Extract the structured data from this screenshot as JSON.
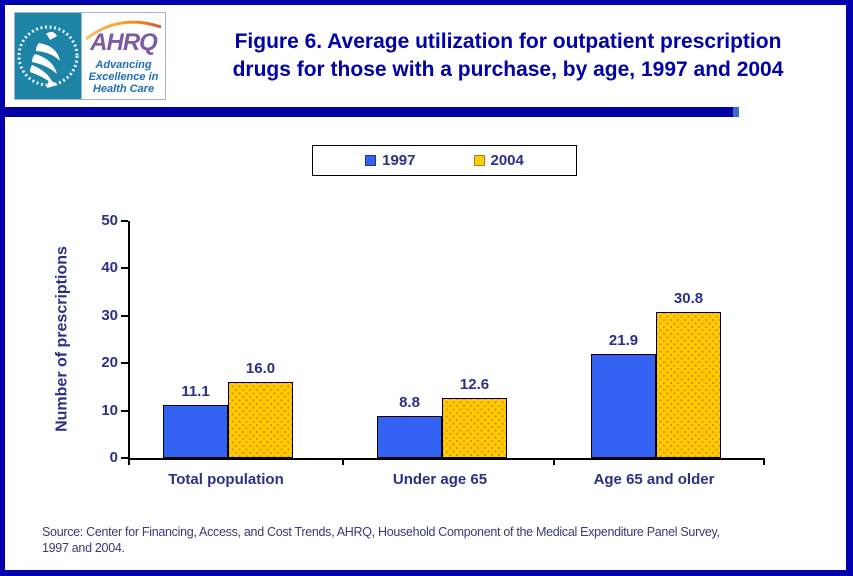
{
  "header": {
    "logo": {
      "hhs_seal": "Department of Health & Human Services USA seal",
      "ahrq_acronym": "AHRQ",
      "ahrq_tagline_lines": [
        "Advancing",
        "Excellence in",
        "Health Care"
      ]
    },
    "title_lines": [
      "Figure 6. Average utilization for outpatient prescription",
      "drugs for those with a purchase, by age, 1997 and 2004"
    ]
  },
  "chart_data": {
    "type": "bar",
    "title": "Figure 6. Average utilization for outpatient prescription drugs for those with a purchase, by age, 1997 and 2004",
    "categories": [
      "Total population",
      "Under age 65",
      "Age 65 and older"
    ],
    "series": [
      {
        "name": "1997",
        "color": "#3361F2",
        "values": [
          11.1,
          8.8,
          21.9
        ]
      },
      {
        "name": "2004",
        "color": "#FFCC00",
        "values": [
          16.0,
          12.6,
          30.8
        ]
      }
    ],
    "xlabel": "",
    "ylabel": "Number of prescriptions",
    "ylim": [
      0,
      50
    ],
    "yticks": [
      0,
      10,
      20,
      30,
      40,
      50
    ],
    "value_labels": true,
    "legend_position": "top-center",
    "grid": false
  },
  "footer": {
    "source_lines": [
      "Source: Center for Financing, Access, and Cost Trends, AHRQ, Household Component of the Medical Expenditure Panel Survey,",
      "1997 and 2004."
    ]
  },
  "colors": {
    "page_border": "#0000AC",
    "divider_bar": "#0000A4",
    "title_text": "#0000A6",
    "chart_text": "#2B3087",
    "bar_1997": "#3361F2",
    "bar_2004": "#FFCC00",
    "bar_2004_dots": "#E2940E",
    "hhs_teal": "#1D84A5",
    "ahrq_purple": "#7B5AA6",
    "ahrq_tagline_blue": "#1E6FB8",
    "swoosh_orange": "#F7941D"
  }
}
